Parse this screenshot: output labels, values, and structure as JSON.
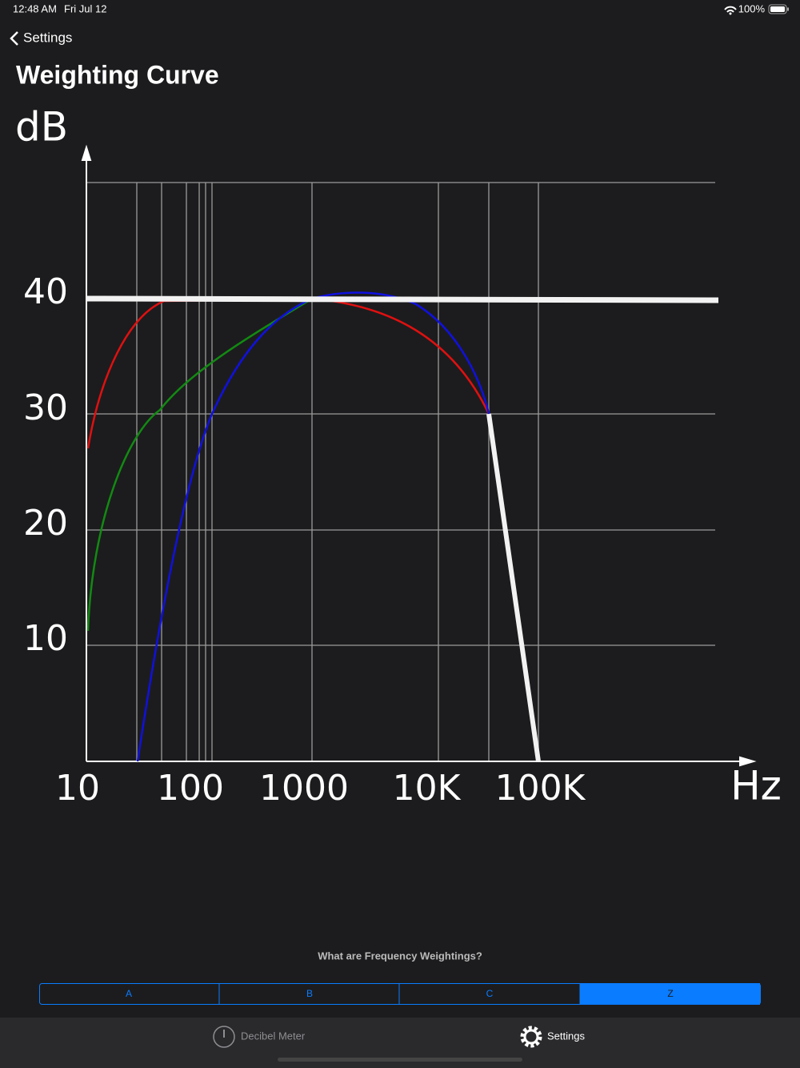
{
  "status_bar": {
    "time": "12:48 AM",
    "date": "Fri Jul 12",
    "battery": "100%"
  },
  "nav": {
    "back": "Settings",
    "title": "Weighting Curve"
  },
  "chart": {
    "y_axis_label": "dB",
    "x_axis_label": "Hz",
    "y_labels": [
      "40",
      "30",
      "20",
      "10"
    ],
    "x_labels": [
      "10",
      "100",
      "1000",
      "10K",
      "100K"
    ]
  },
  "question": "What are Frequency Weightings?",
  "segments": [
    "A",
    "B",
    "C",
    "Z"
  ],
  "tabs": [
    "Decibel Meter",
    "Settings"
  ]
}
